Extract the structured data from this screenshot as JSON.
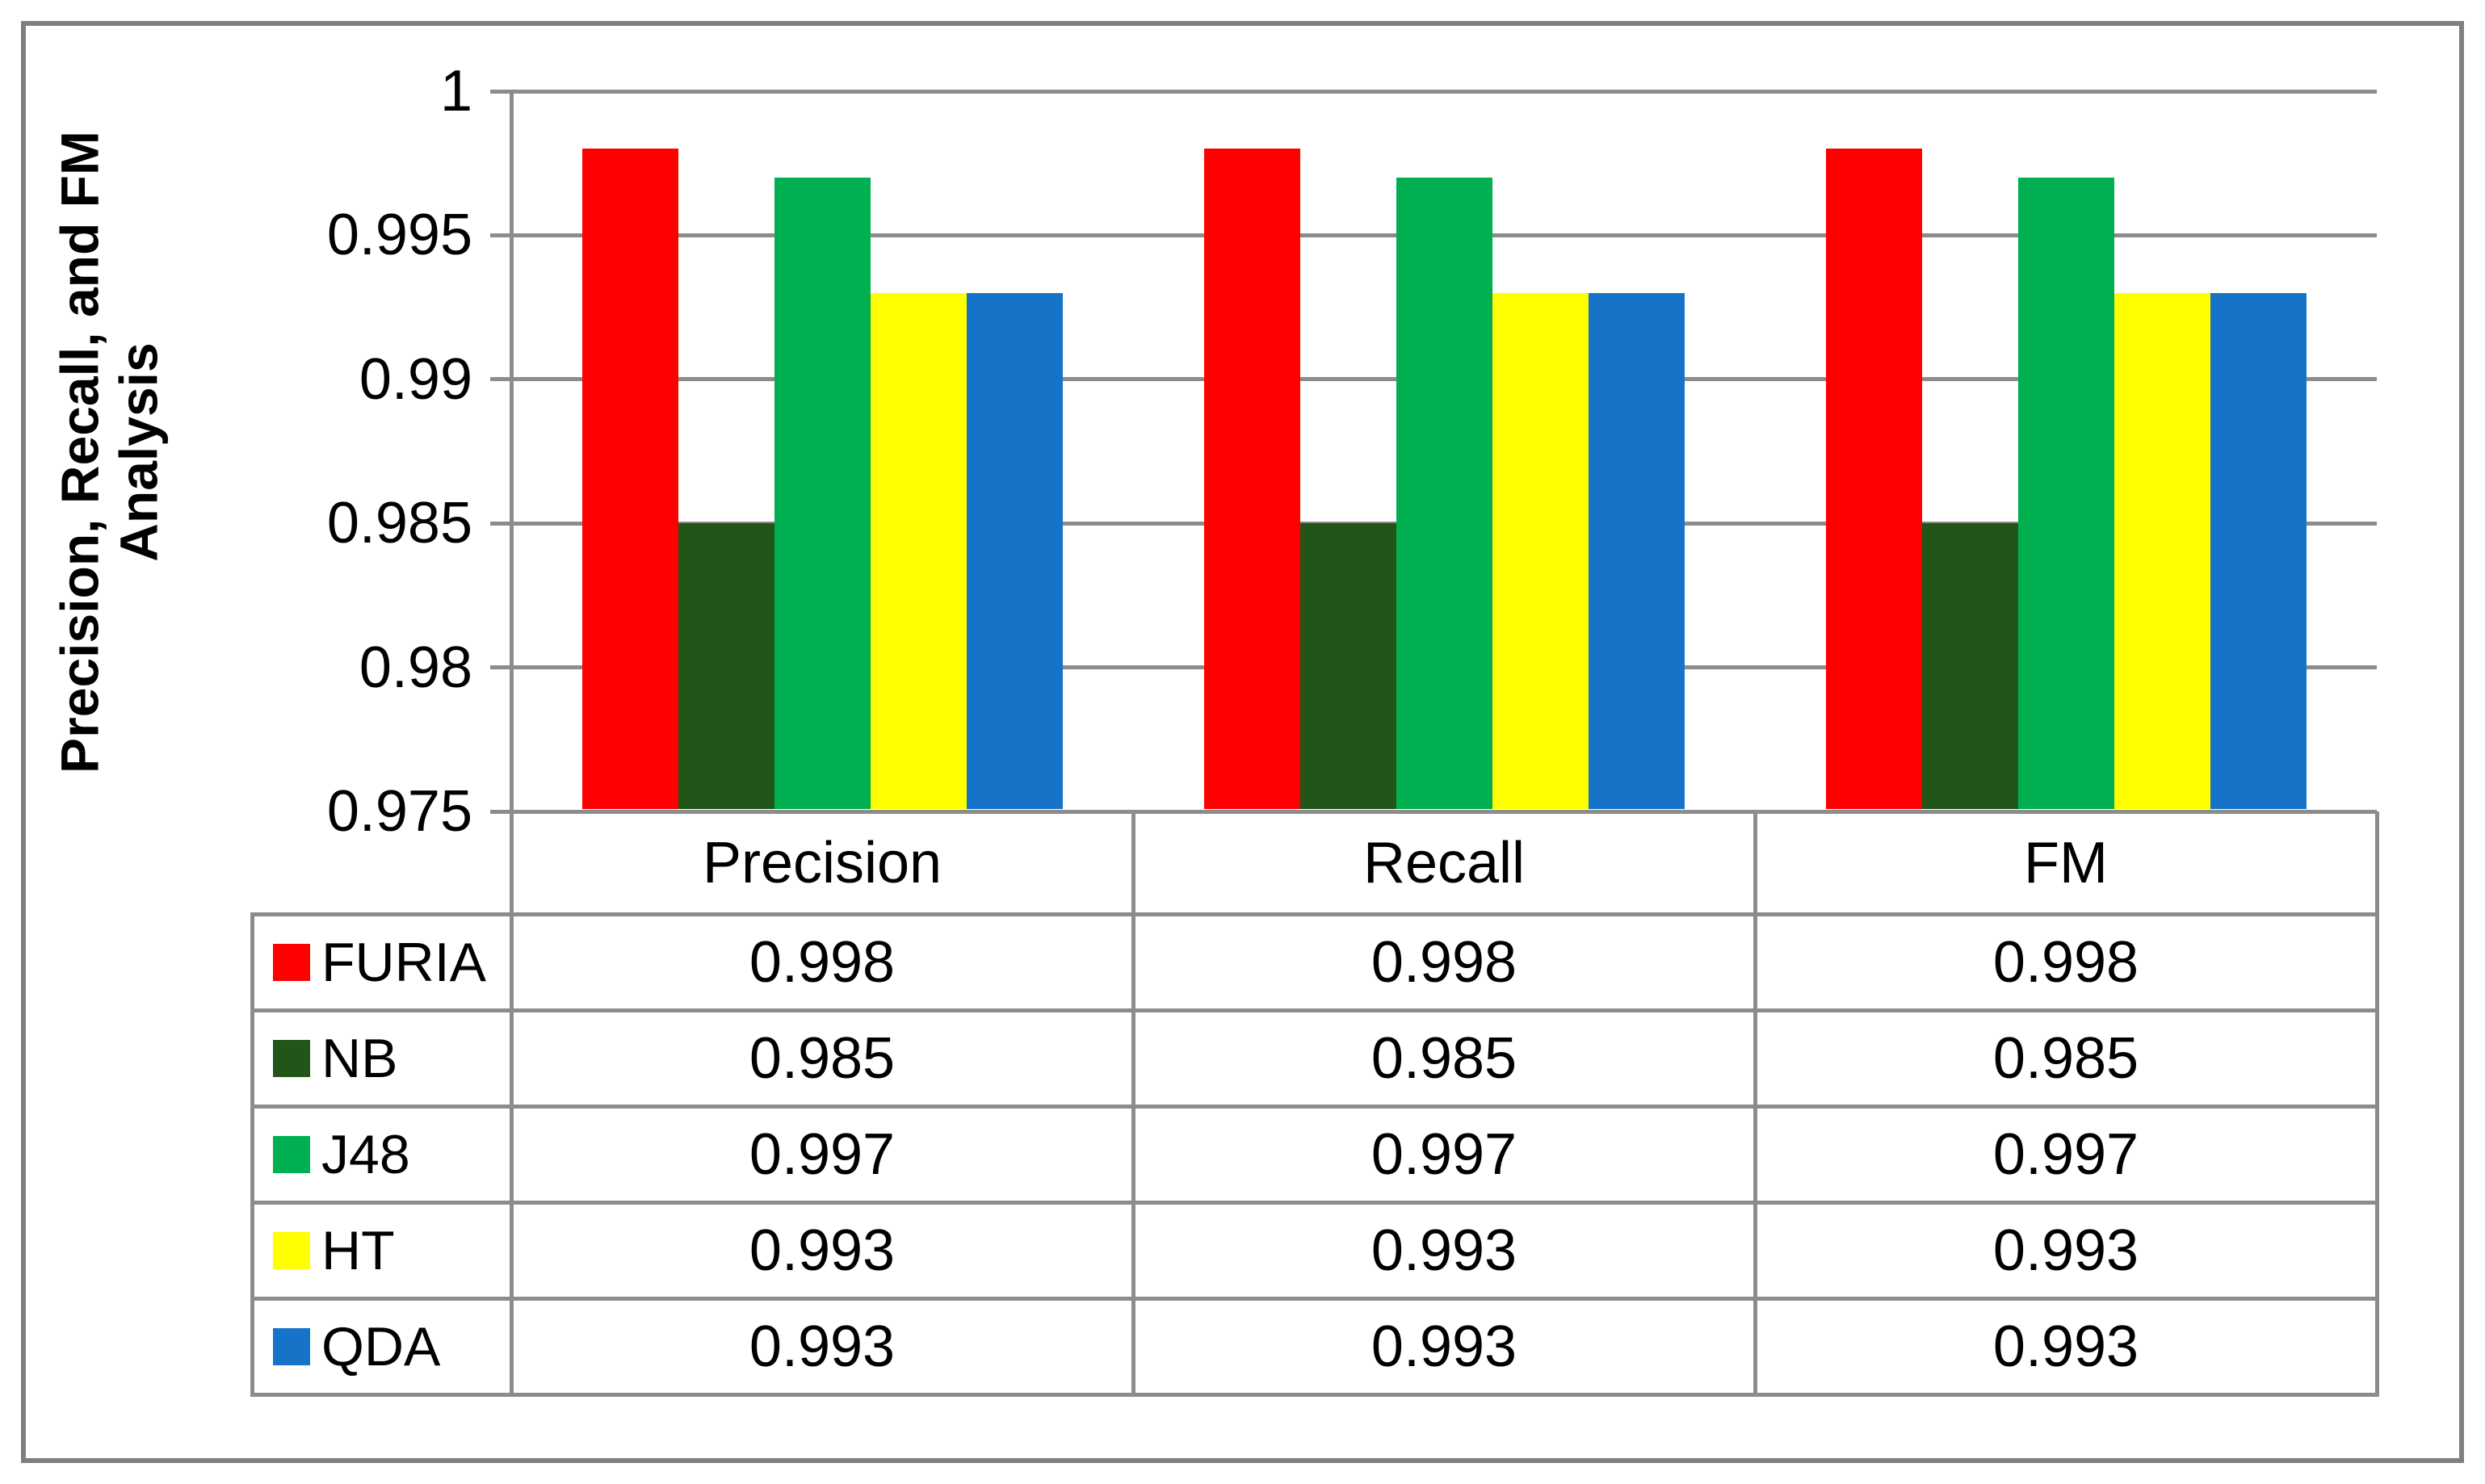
{
  "chart_data": {
    "type": "bar",
    "title": "",
    "xlabel": "",
    "ylabel": "Precision, Recall, and FM Analysis",
    "categories": [
      "Precision",
      "Recall",
      "FM"
    ],
    "series": [
      {
        "name": "FURIA",
        "color": "#ff0000",
        "values": [
          0.998,
          0.998,
          0.998
        ]
      },
      {
        "name": "NB",
        "color": "#215618",
        "values": [
          0.985,
          0.985,
          0.985
        ]
      },
      {
        "name": "J48",
        "color": "#00b050",
        "values": [
          0.997,
          0.997,
          0.997
        ]
      },
      {
        "name": "HT",
        "color": "#ffff00",
        "values": [
          0.993,
          0.993,
          0.993
        ]
      },
      {
        "name": "QDA",
        "color": "#1773c8",
        "values": [
          0.993,
          0.993,
          0.993
        ]
      }
    ],
    "ylim": [
      0.975,
      1.0
    ],
    "yticks": [
      "1",
      "0.995",
      "0.99",
      "0.985",
      "0.98",
      "0.975"
    ],
    "ytick_values": [
      1,
      0.995,
      0.99,
      0.985,
      0.98,
      0.975
    ],
    "grid": true,
    "legend_position": "table-left",
    "gridline_color": "#8c8c8c"
  }
}
